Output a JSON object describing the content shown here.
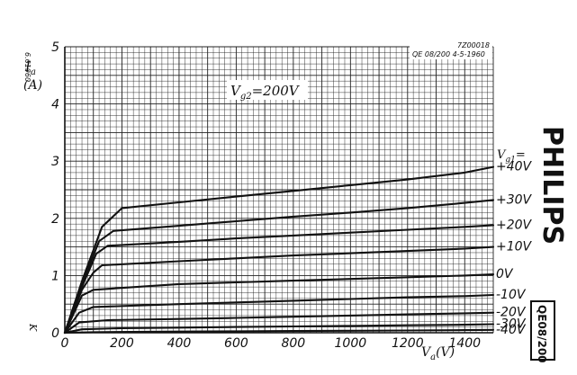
{
  "header": {
    "doc_number": "7Z00018",
    "doc_ref": "QE 08/200 4-5-1960",
    "side_code": "6.61960"
  },
  "brand": {
    "name": "PHILIPS",
    "type_code": "QE08/200"
  },
  "chart_data": {
    "type": "line",
    "title": "",
    "condition": {
      "prefix": "V",
      "sub": "g2",
      "value": "=200V"
    },
    "ylabel": {
      "symbol": "I",
      "sub": "a",
      "unit": "(A)"
    },
    "xlabel": {
      "symbol": "V",
      "sub": "a",
      "unit": "(V)"
    },
    "legend_title": {
      "symbol": "V",
      "sub": "g1",
      "suffix": "="
    },
    "corner_mark": "K",
    "xlim": [
      0,
      1500
    ],
    "ylim": [
      0,
      5
    ],
    "x_ticks": [
      0,
      200,
      400,
      600,
      800,
      1000,
      1200,
      1400
    ],
    "x_tick_labels": [
      "0",
      "200",
      "400",
      "600",
      "800",
      "1000",
      "1200",
      "1400"
    ],
    "y_ticks": [
      0,
      1,
      2,
      3,
      4,
      5
    ],
    "y_tick_labels": [
      "0",
      "1",
      "2",
      "3",
      "4",
      "5"
    ],
    "grid": true,
    "series": [
      {
        "name": "+40V",
        "x": [
          0,
          60,
          130,
          200,
          400,
          600,
          800,
          1000,
          1200,
          1400,
          1500
        ],
        "y": [
          0,
          0.9,
          1.85,
          2.18,
          2.28,
          2.38,
          2.48,
          2.58,
          2.68,
          2.8,
          2.9
        ]
      },
      {
        "name": "+30V",
        "x": [
          0,
          60,
          120,
          170,
          400,
          600,
          800,
          1000,
          1200,
          1400,
          1500
        ],
        "y": [
          0,
          0.85,
          1.6,
          1.78,
          1.87,
          1.95,
          2.03,
          2.1,
          2.18,
          2.27,
          2.32
        ]
      },
      {
        "name": "+20V",
        "x": [
          0,
          60,
          110,
          150,
          400,
          600,
          800,
          1000,
          1200,
          1400,
          1500
        ],
        "y": [
          0,
          0.8,
          1.38,
          1.52,
          1.59,
          1.65,
          1.7,
          1.75,
          1.8,
          1.85,
          1.88
        ]
      },
      {
        "name": "+10V",
        "x": [
          0,
          60,
          100,
          130,
          400,
          600,
          800,
          1000,
          1200,
          1400,
          1500
        ],
        "y": [
          0,
          0.75,
          1.05,
          1.18,
          1.25,
          1.3,
          1.35,
          1.39,
          1.43,
          1.47,
          1.5
        ]
      },
      {
        "name": "0V",
        "x": [
          0,
          60,
          100,
          400,
          600,
          800,
          1000,
          1200,
          1400,
          1500
        ],
        "y": [
          0,
          0.65,
          0.75,
          0.85,
          0.88,
          0.91,
          0.94,
          0.97,
          1.0,
          1.02
        ]
      },
      {
        "name": "-10V",
        "x": [
          0,
          50,
          100,
          400,
          600,
          800,
          1000,
          1200,
          1400,
          1500
        ],
        "y": [
          0,
          0.35,
          0.45,
          0.5,
          0.53,
          0.56,
          0.59,
          0.62,
          0.64,
          0.66
        ]
      },
      {
        "name": "-20V",
        "x": [
          0,
          50,
          150,
          400,
          600,
          800,
          1000,
          1200,
          1400,
          1500
        ],
        "y": [
          0,
          0.18,
          0.22,
          0.24,
          0.26,
          0.28,
          0.3,
          0.32,
          0.34,
          0.35
        ]
      },
      {
        "name": "-30V",
        "x": [
          0,
          60,
          200,
          400,
          600,
          800,
          1000,
          1200,
          1400,
          1500
        ],
        "y": [
          0,
          0.06,
          0.08,
          0.09,
          0.1,
          0.11,
          0.12,
          0.13,
          0.14,
          0.15
        ]
      },
      {
        "name": "-40V",
        "x": [
          0,
          100,
          400,
          600,
          800,
          1000,
          1200,
          1400,
          1500
        ],
        "y": [
          0,
          0.01,
          0.02,
          0.025,
          0.03,
          0.035,
          0.04,
          0.045,
          0.05
        ]
      }
    ]
  }
}
